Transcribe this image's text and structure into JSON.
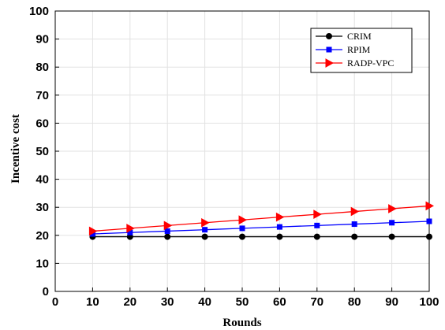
{
  "chart_data": {
    "type": "line",
    "title": "",
    "xlabel": "Rounds",
    "ylabel": "Incentive cost",
    "xlim": [
      0,
      100
    ],
    "ylim": [
      0,
      100
    ],
    "xticks": [
      0,
      10,
      20,
      30,
      40,
      50,
      60,
      70,
      80,
      90,
      100
    ],
    "yticks": [
      0,
      10,
      20,
      30,
      40,
      50,
      60,
      70,
      80,
      90,
      100
    ],
    "grid": true,
    "legend_position": "top-right",
    "x": [
      10,
      20,
      30,
      40,
      50,
      60,
      70,
      80,
      90,
      100
    ],
    "series": [
      {
        "name": "CRIM",
        "color": "#000000",
        "marker": "circle",
        "values": [
          19.5,
          19.5,
          19.5,
          19.5,
          19.5,
          19.5,
          19.5,
          19.5,
          19.5,
          19.5
        ]
      },
      {
        "name": "RPIM",
        "color": "#0000ff",
        "marker": "square",
        "values": [
          20.5,
          21.0,
          21.5,
          22.0,
          22.5,
          23.0,
          23.5,
          24.0,
          24.5,
          25.0
        ]
      },
      {
        "name": "RADP-VPC",
        "color": "#ff0000",
        "marker": "triangle-right",
        "values": [
          21.5,
          22.5,
          23.5,
          24.5,
          25.5,
          26.5,
          27.5,
          28.5,
          29.5,
          30.5
        ]
      }
    ]
  }
}
